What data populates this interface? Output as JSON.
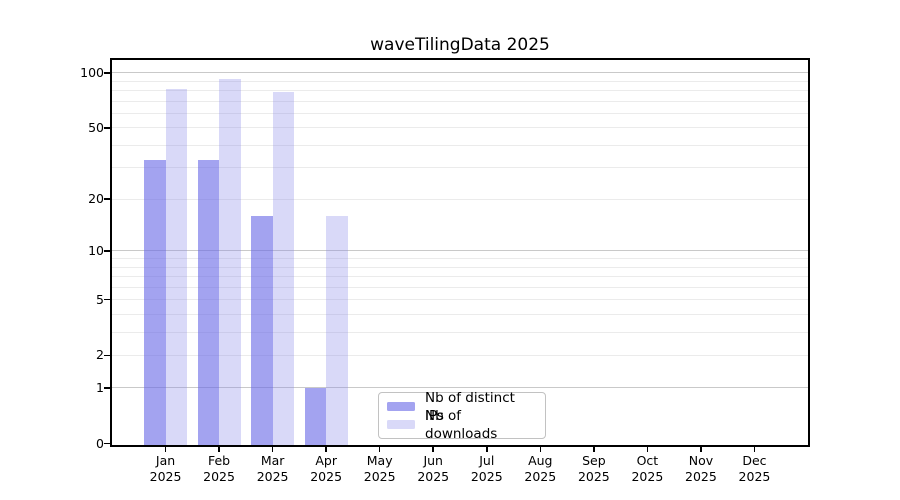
{
  "chart_data": {
    "type": "bar",
    "title": "waveTilingData 2025",
    "categories": [
      "Jan",
      "Feb",
      "Mar",
      "Apr",
      "May",
      "Jun",
      "Jul",
      "Aug",
      "Sep",
      "Oct",
      "Nov",
      "Dec"
    ],
    "x_tick_second_line": "2025",
    "series": [
      {
        "name": "Nb of distinct IPs",
        "color_hex": "#a3a3f0",
        "fill": "rgba(107,107,231,0.62)",
        "values": [
          33,
          33,
          16,
          1,
          0,
          0,
          0,
          0,
          0,
          0,
          0,
          0
        ]
      },
      {
        "name": "Nb of downloads",
        "color_hex": "#d9d9f8",
        "fill": "rgba(136,136,233,0.32)",
        "values": [
          82,
          93,
          79,
          16,
          0,
          0,
          0,
          0,
          0,
          0,
          0,
          0
        ]
      }
    ],
    "y_axis": {
      "scale": "log10(1+value)",
      "tick_values": [
        100,
        50,
        20,
        10,
        5,
        2,
        1,
        0
      ],
      "tick_labels": [
        "100",
        "50",
        "20",
        "10",
        "5",
        "2",
        "1",
        "0"
      ],
      "major_grid_values": [
        1,
        10,
        100
      ],
      "minor_grid_values": [
        2,
        3,
        4,
        5,
        6,
        7,
        8,
        9,
        20,
        30,
        40,
        50,
        60,
        70,
        80,
        90
      ],
      "range": [
        0,
        117
      ]
    },
    "legend": {
      "position": "lower-center",
      "entries": [
        "Nb of distinct IPs",
        "Nb of downloads"
      ]
    },
    "grid": "on",
    "colors": {
      "major_grid": "#c9c9c9",
      "minor_grid": "#ebebeb",
      "spine": "#000000",
      "background": "#ffffff",
      "text": "#000000"
    }
  }
}
